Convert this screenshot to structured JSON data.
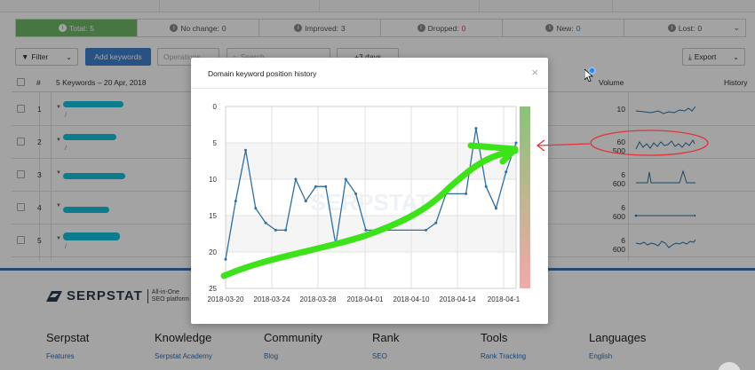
{
  "stats": [
    {
      "label": "Total:",
      "value": "5",
      "active": true
    },
    {
      "label": "No change:",
      "value": "0"
    },
    {
      "label": "Improved:",
      "value": "3"
    },
    {
      "label": "Dropped:",
      "value": "0",
      "color": "#e0333a"
    },
    {
      "label": "New:",
      "value": "0",
      "color": "#2f7cc0"
    },
    {
      "label": "Lost:",
      "value": "0"
    }
  ],
  "toolbar": {
    "filter_label": "Filter",
    "add_keywords_label": "Add keywords",
    "operations_placeholder": "Operations",
    "search_placeholder": "Search",
    "days_label": "+3 days",
    "export_label": "Export"
  },
  "table": {
    "col_num": "#",
    "col_keywords": "5 Keywords – 20 Apr, 2018",
    "col_volume": "Volume",
    "col_history": "History",
    "rows": [
      {
        "num": "1",
        "volume": "10"
      },
      {
        "num": "2",
        "volume": "60 500"
      },
      {
        "num": "3",
        "volume": "6 600"
      },
      {
        "num": "4",
        "volume": "6 600"
      },
      {
        "num": "5",
        "volume": "6 600"
      }
    ]
  },
  "footer": {
    "logo": "SERPSTAT",
    "logo_sub_1": "All-in-One",
    "logo_sub_2": "SEO platform",
    "columns": [
      {
        "title": "Serpstat",
        "link": "Features"
      },
      {
        "title": "Knowledge",
        "link": "Serpstat Academy"
      },
      {
        "title": "Community",
        "link": "Blog"
      },
      {
        "title": "Rank",
        "link": "SEO"
      },
      {
        "title": "Tools",
        "link": "Rank Tracking"
      },
      {
        "title": "Languages",
        "link": "English"
      }
    ]
  },
  "modal": {
    "title": "Domain keyword position history",
    "close_glyph": "×",
    "watermark": "SERPSTAT"
  },
  "chart_data": {
    "type": "line",
    "title": "Domain keyword position history",
    "y_ticks": [
      "0",
      "5",
      "10",
      "15",
      "20",
      "25"
    ],
    "ylim": [
      25,
      0
    ],
    "x_ticks": [
      "2018-03-20",
      "2018-03-24",
      "2018-03-28",
      "2018-04-01",
      "2018-04-10",
      "2018-04-14",
      "2018-04-1"
    ],
    "series": [
      {
        "color": "#2f6fa0",
        "points": [
          [
            "2018-03-20",
            21
          ],
          [
            "2018-03-21",
            13
          ],
          [
            "2018-03-22",
            6
          ],
          [
            "2018-03-23",
            14
          ],
          [
            "2018-03-24",
            16
          ],
          [
            "2018-03-25",
            17
          ],
          [
            "2018-03-26",
            17
          ],
          [
            "2018-03-27",
            10
          ],
          [
            "2018-03-28",
            13
          ],
          [
            "2018-03-29",
            11
          ],
          [
            "2018-03-30",
            11
          ],
          [
            "2018-03-31",
            19
          ],
          [
            "2018-04-01",
            10
          ],
          [
            "2018-04-02",
            12
          ],
          [
            "2018-04-03",
            17
          ],
          [
            "2018-04-09",
            17
          ],
          [
            "2018-04-10",
            16
          ],
          [
            "2018-04-11",
            12
          ],
          [
            "2018-04-13",
            12
          ],
          [
            "2018-04-14",
            3
          ],
          [
            "2018-04-15",
            11
          ],
          [
            "2018-04-16",
            14
          ],
          [
            "2018-04-17",
            9
          ],
          [
            "2018-04-18",
            5
          ]
        ]
      }
    ],
    "grid": true,
    "gradient_bar": {
      "top_color": "#8cc27a",
      "bottom_color": "#f2a9a9"
    }
  },
  "annotations": {
    "highlight_color": "#3ee21a",
    "circle_color": "#e0333a"
  }
}
